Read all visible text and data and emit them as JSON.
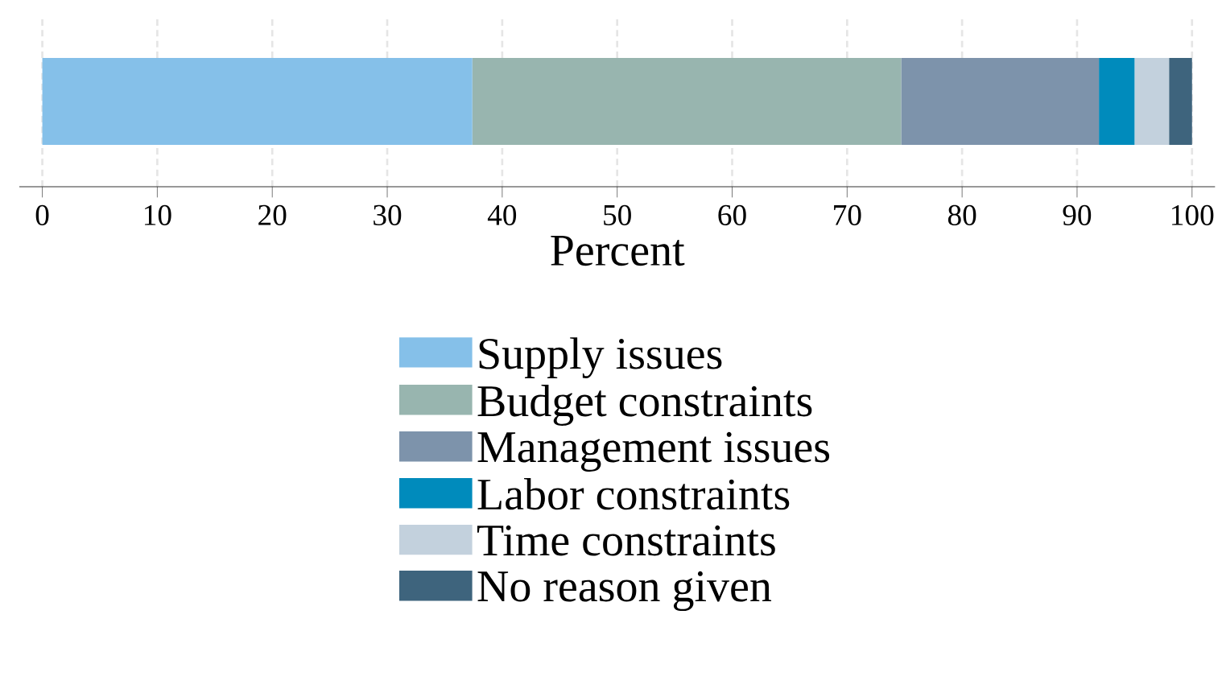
{
  "chart_data": {
    "type": "bar",
    "orientation": "horizontal",
    "stacked": true,
    "xlabel": "Percent",
    "categories": [
      null
    ],
    "series": [
      {
        "name": "Supply issues",
        "color": "#85c0e9",
        "values": [
          37.4
        ]
      },
      {
        "name": "Budget constraints",
        "color": "#98b5af",
        "values": [
          37.3
        ]
      },
      {
        "name": "Management issues",
        "color": "#7d93ab",
        "values": [
          17.2
        ]
      },
      {
        "name": "Labor constraints",
        "color": "#008bbc",
        "values": [
          3.1
        ]
      },
      {
        "name": "Time constraints",
        "color": "#c3d1dd",
        "values": [
          3.0
        ]
      },
      {
        "name": "No reason given",
        "color": "#3e647d",
        "values": [
          2.0
        ]
      }
    ],
    "xlim": [
      -2,
      102
    ],
    "xticks": [
      0,
      10,
      20,
      30,
      40,
      50,
      60,
      70,
      80,
      90,
      100
    ],
    "grid": "x",
    "legend": "bottom",
    "tick_labels": "x"
  }
}
